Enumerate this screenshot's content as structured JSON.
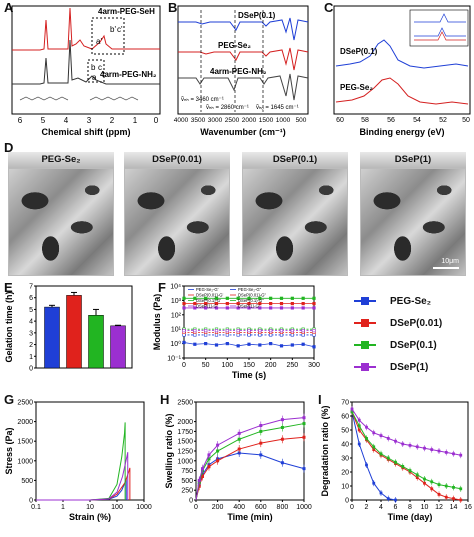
{
  "panels": {
    "A": {
      "label": "A",
      "xlabel": "Chemical shift (ppm)",
      "ticks": [
        "6",
        "5",
        "4",
        "3",
        "2",
        "1",
        "0"
      ],
      "traces": [
        "4arm-PEG-SeH",
        "4arm-PEG-NH₂"
      ],
      "peak_labels": [
        "a",
        "b",
        "c",
        "a'",
        "b'",
        "c'"
      ]
    },
    "B": {
      "label": "B",
      "xlabel": "Wavenumber (cm⁻¹)",
      "ticks": [
        "4000",
        "3500",
        "3000",
        "2500",
        "2000",
        "1500",
        "1000",
        "500"
      ],
      "traces": [
        "DSeP(0.1)",
        "PEG-Se₂",
        "4arm-PEG-NH₂"
      ],
      "annotations": [
        "ṽₙₕ = 3460 cm⁻¹",
        "ṽₕₕ = 2860 cm⁻¹",
        "ṽₕₒ = 1645 cm⁻¹"
      ]
    },
    "C": {
      "label": "C",
      "xlabel": "Binding energy (eV)",
      "ticks": [
        "60",
        "58",
        "56",
        "54",
        "52",
        "50"
      ],
      "traces": [
        "DSeP(0.1)",
        "PEG-Se₂"
      ]
    },
    "D": {
      "label": "D",
      "images": [
        "PEG-Se₂",
        "DSeP(0.01)",
        "DSeP(0.1)",
        "DSeP(1)"
      ],
      "scale": "10μm"
    },
    "E": {
      "label": "E",
      "ylabel": "Gelation time (h)",
      "yticks": [
        "0",
        "1",
        "2",
        "3",
        "4",
        "5",
        "6",
        "7"
      ]
    },
    "F": {
      "label": "F",
      "ylabel": "Modulus (Pa)",
      "xlabel": "Time (s)",
      "xticks": [
        "0",
        "50",
        "100",
        "150",
        "200",
        "250",
        "300"
      ],
      "yticks": [
        "10⁻¹",
        "10⁰",
        "10¹",
        "10²",
        "10³",
        "10⁴"
      ],
      "inner_legend": [
        "PEG-Se₂-G'",
        "PEG-Se₂-G''",
        "DSeP(0.01)-G'",
        "DSeP(0.01)-G''",
        "DSeP(0.1)-G'",
        "DSeP(0.1)-G''",
        "DSeP(1)-G'",
        "DSeP(1)-G''"
      ]
    },
    "G": {
      "label": "G",
      "ylabel": "Stress (Pa)",
      "xlabel": "Strain (%)",
      "xticks": [
        "0.1",
        "1",
        "10",
        "100",
        "1000"
      ],
      "yticks": [
        "0",
        "500",
        "1000",
        "1500",
        "2000",
        "2500"
      ]
    },
    "H": {
      "label": "H",
      "ylabel": "Swelling ratio (%)",
      "xlabel": "Time (min)",
      "xticks": [
        "0",
        "200",
        "400",
        "600",
        "800",
        "1000"
      ],
      "yticks": [
        "0",
        "250",
        "500",
        "750",
        "1000",
        "1250",
        "1500",
        "1750",
        "2000",
        "2500"
      ]
    },
    "I": {
      "label": "I",
      "ylabel": "Degradation ratio (%)",
      "xlabel": "Time (day)",
      "xticks": [
        "0",
        "2",
        "4",
        "6",
        "8",
        "10",
        "12",
        "14",
        "16"
      ],
      "yticks": [
        "0",
        "10",
        "20",
        "30",
        "40",
        "50",
        "60",
        "70"
      ]
    }
  },
  "legend": [
    {
      "name": "PEG-Se₂",
      "color": "#1f3fd6"
    },
    {
      "name": "DSeP(0.01)",
      "color": "#e0221c"
    },
    {
      "name": "DSeP(0.1)",
      "color": "#22b522"
    },
    {
      "name": "DSeP(1)",
      "color": "#9b2fd0"
    }
  ],
  "chart_data": [
    {
      "type": "bar",
      "panel": "E",
      "categories": [
        "PEG-Se₂",
        "DSeP(0.01)",
        "DSeP(0.1)",
        "DSeP(1)"
      ],
      "values": [
        5.2,
        6.2,
        4.5,
        3.6
      ],
      "errors": [
        0.15,
        0.25,
        0.5,
        0.05
      ],
      "ylabel": "Gelation time (h)",
      "ylim": [
        0,
        7
      ]
    },
    {
      "type": "scatter",
      "panel": "F",
      "yscale": "log",
      "x": [
        0,
        25,
        50,
        75,
        100,
        125,
        150,
        175,
        200,
        225,
        250,
        275,
        300
      ],
      "series": [
        {
          "name": "PEG-Se₂-G'",
          "color": "#1f3fd6",
          "values": [
            1.2,
            0.9,
            1.0,
            0.8,
            1.0,
            0.7,
            0.9,
            0.8,
            1.0,
            0.7,
            0.8,
            0.9,
            0.6
          ]
        },
        {
          "name": "PEG-Se₂-G''",
          "color": "#1f3fd6",
          "values": [
            4,
            4,
            4,
            4,
            4,
            4,
            4,
            4,
            4,
            4,
            4,
            4,
            4
          ]
        },
        {
          "name": "DSeP(0.01)-G'",
          "color": "#e0221c",
          "values": [
            600,
            600,
            600,
            600,
            600,
            600,
            600,
            600,
            600,
            600,
            600,
            600,
            600
          ]
        },
        {
          "name": "DSeP(0.01)-G''",
          "color": "#e0221c",
          "values": [
            6,
            6,
            6,
            6,
            6,
            6,
            6,
            6,
            6,
            6,
            6,
            6,
            6
          ]
        },
        {
          "name": "DSeP(0.1)-G'",
          "color": "#22b522",
          "values": [
            1400,
            1400,
            1400,
            1400,
            1400,
            1400,
            1400,
            1400,
            1400,
            1400,
            1400,
            1400,
            1400
          ]
        },
        {
          "name": "DSeP(0.1)-G''",
          "color": "#22b522",
          "values": [
            10,
            10,
            10,
            10,
            10,
            10,
            10,
            10,
            10,
            10,
            10,
            10,
            10
          ]
        },
        {
          "name": "DSeP(1)-G'",
          "color": "#9b2fd0",
          "values": [
            300,
            300,
            300,
            300,
            300,
            300,
            300,
            300,
            300,
            300,
            300,
            300,
            300
          ]
        },
        {
          "name": "DSeP(1)-G''",
          "color": "#9b2fd0",
          "values": [
            8,
            8,
            8,
            8,
            8,
            8,
            8,
            8,
            8,
            8,
            8,
            8,
            8
          ]
        }
      ],
      "xlabel": "Time (s)",
      "ylabel": "Modulus (Pa)",
      "xlim": [
        0,
        300
      ],
      "ylim": [
        0.1,
        10000
      ]
    },
    {
      "type": "line",
      "panel": "G",
      "xscale": "log",
      "series": [
        {
          "name": "PEG-Se₂",
          "color": "#1f3fd6",
          "x": [
            0.1,
            1,
            10,
            50,
            100,
            150,
            200,
            220,
            220
          ],
          "values": [
            0,
            0,
            0,
            20,
            100,
            250,
            450,
            550,
            0
          ]
        },
        {
          "name": "DSeP(0.01)",
          "color": "#e0221c",
          "x": [
            0.1,
            1,
            10,
            50,
            100,
            200,
            280,
            300,
            300
          ],
          "values": [
            0,
            0,
            0,
            25,
            150,
            450,
            750,
            820,
            0
          ]
        },
        {
          "name": "DSeP(0.1)",
          "color": "#22b522",
          "x": [
            0.1,
            1,
            10,
            50,
            100,
            150,
            190,
            200,
            200
          ],
          "values": [
            0,
            0,
            0,
            40,
            400,
            1100,
            1700,
            1980,
            0
          ]
        },
        {
          "name": "DSeP(1)",
          "color": "#9b2fd0",
          "x": [
            0.1,
            1,
            10,
            50,
            100,
            160,
            240,
            250,
            250
          ],
          "values": [
            0,
            0,
            0,
            30,
            200,
            600,
            1150,
            1220,
            0
          ]
        }
      ],
      "xlabel": "Strain (%)",
      "ylabel": "Stress (Pa)",
      "xlim": [
        0.1,
        1000
      ],
      "ylim": [
        0,
        2500
      ]
    },
    {
      "type": "line",
      "panel": "H",
      "x": [
        0,
        30,
        60,
        120,
        200,
        400,
        600,
        800,
        1000
      ],
      "series": [
        {
          "name": "PEG-Se₂",
          "color": "#1f3fd6",
          "values": [
            0,
            400,
            650,
            900,
            1050,
            1200,
            1150,
            950,
            800
          ]
        },
        {
          "name": "DSeP(0.01)",
          "color": "#e0221c",
          "values": [
            0,
            350,
            600,
            850,
            1000,
            1300,
            1450,
            1550,
            1600
          ]
        },
        {
          "name": "DSeP(0.1)",
          "color": "#22b522",
          "values": [
            0,
            450,
            750,
            1050,
            1250,
            1550,
            1750,
            1850,
            1950
          ]
        },
        {
          "name": "DSeP(1)",
          "color": "#9b2fd0",
          "values": [
            0,
            500,
            800,
            1150,
            1400,
            1700,
            1900,
            2050,
            2100
          ]
        }
      ],
      "xlabel": "Time (min)",
      "ylabel": "Swelling ratio (%)",
      "xlim": [
        0,
        1000
      ],
      "ylim": [
        0,
        2500
      ]
    },
    {
      "type": "line",
      "panel": "I",
      "x": [
        0,
        1,
        2,
        3,
        4,
        5,
        6,
        7,
        8,
        9,
        10,
        11,
        12,
        13,
        14,
        15
      ],
      "series": [
        {
          "name": "PEG-Se₂",
          "color": "#1f3fd6",
          "values": [
            63,
            40,
            25,
            12,
            5,
            1,
            0,
            null,
            null,
            null,
            null,
            null,
            null,
            null,
            null,
            null
          ]
        },
        {
          "name": "DSeP(0.01)",
          "color": "#e0221c",
          "values": [
            63,
            50,
            43,
            36,
            32,
            29,
            26,
            23,
            20,
            16,
            12,
            8,
            4,
            2,
            1,
            0
          ]
        },
        {
          "name": "DSeP(0.1)",
          "color": "#22b522",
          "values": [
            63,
            53,
            44,
            38,
            33,
            30,
            27,
            24,
            21,
            18,
            15,
            13,
            11,
            10,
            9,
            8
          ]
        },
        {
          "name": "DSeP(1)",
          "color": "#9b2fd0",
          "values": [
            65,
            57,
            52,
            48,
            46,
            44,
            42,
            40,
            39,
            38,
            37,
            36,
            35,
            34,
            33,
            32
          ]
        }
      ],
      "xlabel": "Time (day)",
      "ylabel": "Degradation ratio (%)",
      "xlim": [
        0,
        16
      ],
      "ylim": [
        0,
        70
      ]
    }
  ]
}
